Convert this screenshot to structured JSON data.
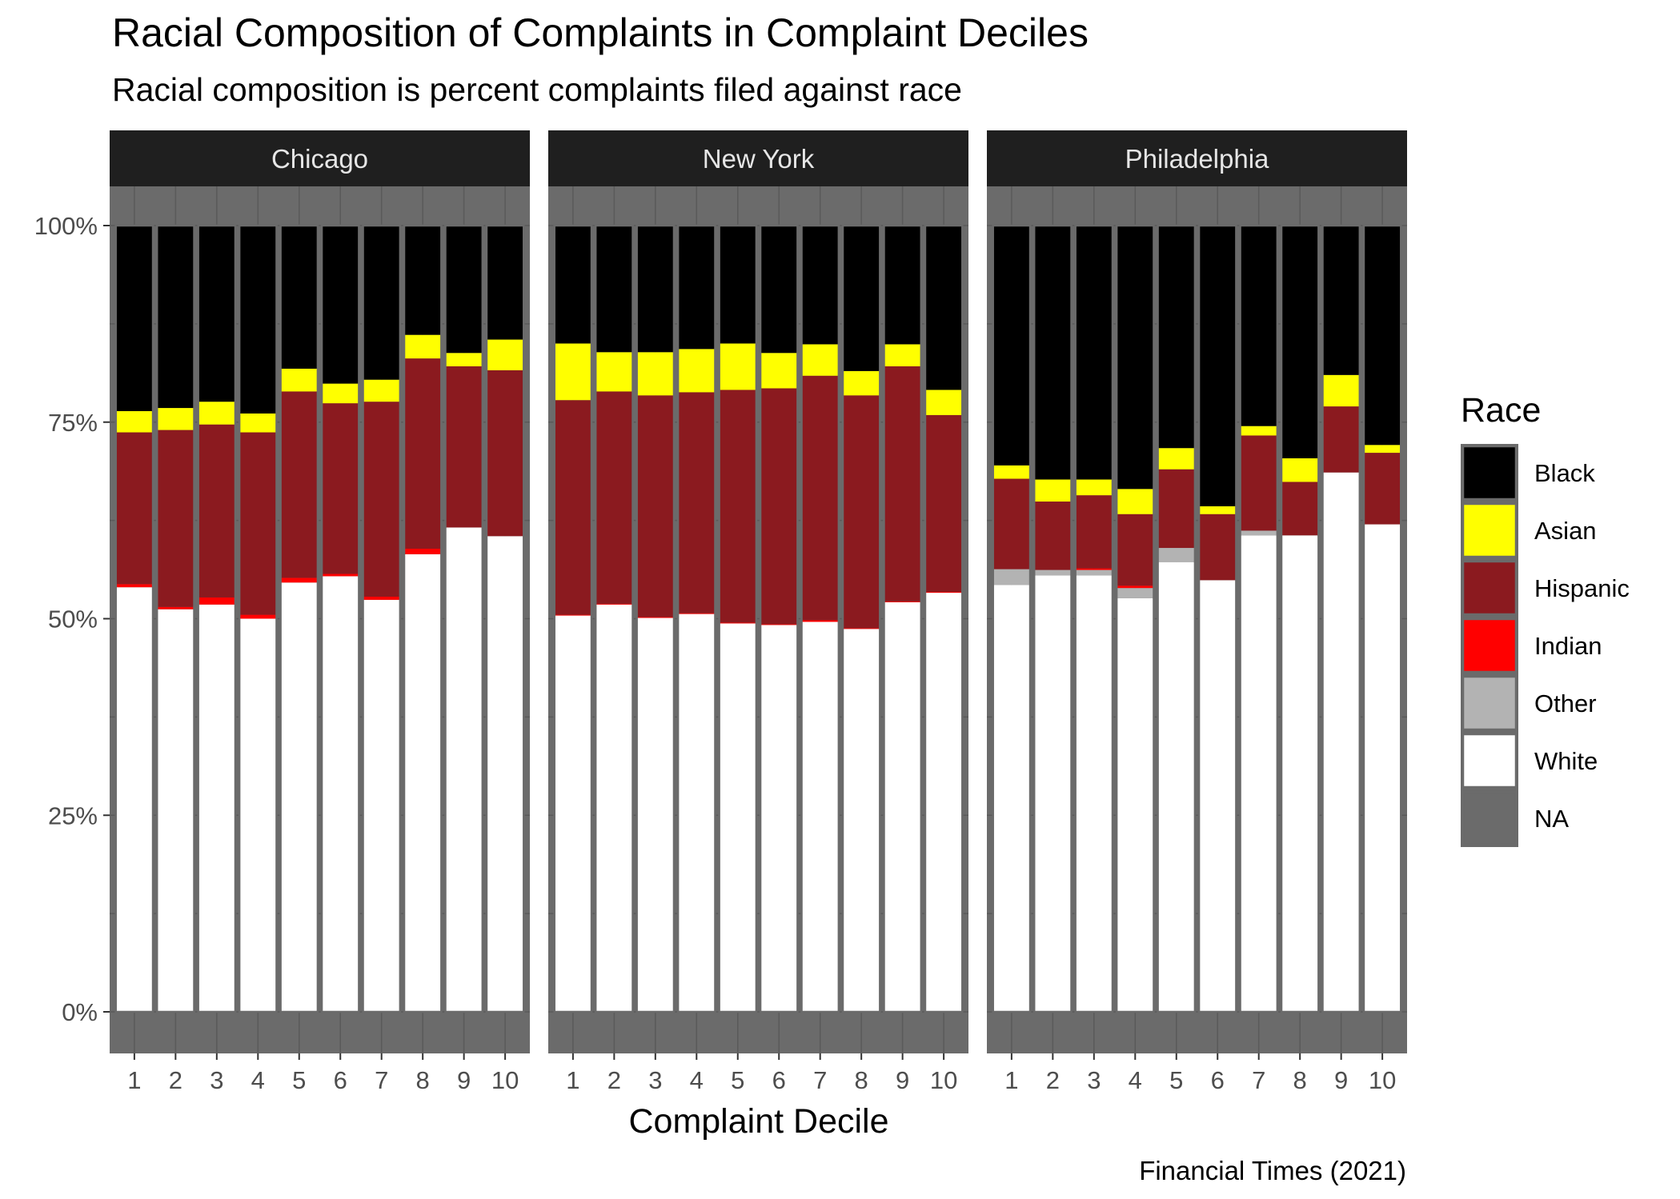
{
  "chart_data": {
    "type": "bar",
    "stacked": true,
    "title": "Racial Composition of Complaints in Complaint Deciles",
    "subtitle": "Racial composition is percent complaints filed against race",
    "xlabel": "Complaint Decile",
    "ylabel": "",
    "caption": "Financial Times (2021)",
    "ylim": [
      0,
      1
    ],
    "yticks": [
      "0%",
      "25%",
      "50%",
      "75%",
      "100%"
    ],
    "ytick_values": [
      0,
      0.25,
      0.5,
      0.75,
      1
    ],
    "categories": [
      "1",
      "2",
      "3",
      "4",
      "5",
      "6",
      "7",
      "8",
      "9",
      "10"
    ],
    "legend": {
      "title": "Race",
      "placement": "right",
      "entries": [
        {
          "name": "Black",
          "color": "#000000"
        },
        {
          "name": "Asian",
          "color": "#ffff00"
        },
        {
          "name": "Hispanic",
          "color": "#8b1a1f"
        },
        {
          "name": "Indian",
          "color": "#ff0000"
        },
        {
          "name": "Other",
          "color": "#b3b3b3"
        },
        {
          "name": "White",
          "color": "#ffffff"
        },
        {
          "name": "NA",
          "color": "#6b6b6b"
        }
      ]
    },
    "stack_order_bottom_to_top": [
      "White",
      "Other",
      "Indian",
      "Hispanic",
      "Asian",
      "Black"
    ],
    "panels": [
      {
        "name": "Chicago",
        "series": [
          {
            "name": "White",
            "values": [
              0.54,
              0.512,
              0.518,
              0.5,
              0.546,
              0.554,
              0.524,
              0.582,
              0.616,
              0.605
            ]
          },
          {
            "name": "Other",
            "values": [
              0.0,
              0.0,
              0.0,
              0.0,
              0.0,
              0.0,
              0.0,
              0.0,
              0.0,
              0.0
            ]
          },
          {
            "name": "Indian",
            "values": [
              0.004,
              0.003,
              0.009,
              0.005,
              0.006,
              0.003,
              0.004,
              0.007,
              0.0,
              0.0
            ]
          },
          {
            "name": "Hispanic",
            "values": [
              0.193,
              0.225,
              0.22,
              0.232,
              0.237,
              0.217,
              0.248,
              0.242,
              0.205,
              0.211
            ]
          },
          {
            "name": "Asian",
            "values": [
              0.027,
              0.028,
              0.029,
              0.024,
              0.029,
              0.025,
              0.028,
              0.03,
              0.017,
              0.039
            ]
          },
          {
            "name": "Black",
            "values": [
              0.236,
              0.232,
              0.224,
              0.239,
              0.182,
              0.201,
              0.196,
              0.139,
              0.162,
              0.145
            ]
          }
        ]
      },
      {
        "name": "New York",
        "series": [
          {
            "name": "White",
            "values": [
              0.504,
              0.518,
              0.501,
              0.506,
              0.494,
              0.492,
              0.496,
              0.487,
              0.521,
              0.533
            ]
          },
          {
            "name": "Other",
            "values": [
              0.0,
              0.0,
              0.0,
              0.0,
              0.0,
              0.0,
              0.0,
              0.0,
              0.0,
              0.0
            ]
          },
          {
            "name": "Indian",
            "values": [
              0.001,
              0.001,
              0.001,
              0.001,
              0.001,
              0.001,
              0.002,
              0.001,
              0.001,
              0.001
            ]
          },
          {
            "name": "Hispanic",
            "values": [
              0.273,
              0.27,
              0.282,
              0.281,
              0.296,
              0.3,
              0.311,
              0.296,
              0.299,
              0.225
            ]
          },
          {
            "name": "Asian",
            "values": [
              0.072,
              0.05,
              0.055,
              0.055,
              0.059,
              0.045,
              0.04,
              0.031,
              0.028,
              0.032
            ]
          },
          {
            "name": "Black",
            "values": [
              0.15,
              0.161,
              0.161,
              0.157,
              0.15,
              0.162,
              0.151,
              0.185,
              0.151,
              0.209
            ]
          }
        ]
      },
      {
        "name": "Philadelphia",
        "series": [
          {
            "name": "White",
            "values": [
              0.543,
              0.555,
              0.555,
              0.526,
              0.572,
              0.549,
              0.606,
              0.606,
              0.686,
              0.62
            ]
          },
          {
            "name": "Other",
            "values": [
              0.02,
              0.007,
              0.007,
              0.013,
              0.018,
              0.0,
              0.006,
              0.0,
              0.0,
              0.0
            ]
          },
          {
            "name": "Indian",
            "values": [
              0.0,
              0.0,
              0.002,
              0.003,
              0.0,
              0.0,
              0.0,
              0.0,
              0.0,
              0.0
            ]
          },
          {
            "name": "Hispanic",
            "values": [
              0.115,
              0.087,
              0.093,
              0.091,
              0.1,
              0.084,
              0.121,
              0.068,
              0.084,
              0.091
            ]
          },
          {
            "name": "Asian",
            "values": [
              0.017,
              0.028,
              0.02,
              0.032,
              0.027,
              0.01,
              0.012,
              0.03,
              0.04,
              0.01
            ]
          },
          {
            "name": "Black",
            "values": [
              0.305,
              0.323,
              0.323,
              0.335,
              0.283,
              0.357,
              0.255,
              0.296,
              0.19,
              0.279
            ]
          }
        ]
      }
    ],
    "colors": {
      "panel_background": "#6b6b6b",
      "grid": "#5a5a5a",
      "strip_background": "#1f1f1f",
      "strip_text": "#e6e6e6",
      "bar_outline": "#6b6b6b"
    }
  }
}
